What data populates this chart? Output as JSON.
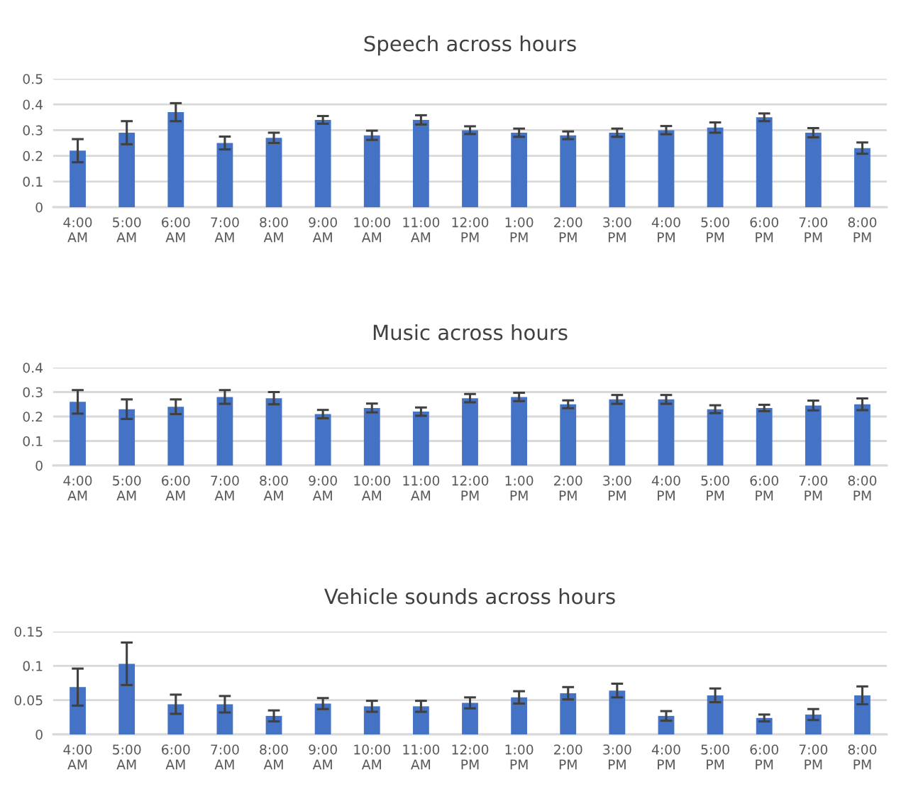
{
  "chart_data": [
    {
      "type": "bar",
      "title": "Speech across hours",
      "categories": [
        "4:00 AM",
        "5:00 AM",
        "6:00 AM",
        "7:00 AM",
        "8:00 AM",
        "9:00 AM",
        "10:00 AM",
        "11:00 AM",
        "12:00 PM",
        "1:00 PM",
        "2:00 PM",
        "3:00 PM",
        "4:00 PM",
        "5:00 PM",
        "6:00 PM",
        "7:00 PM",
        "8:00 PM"
      ],
      "color": "#4472c4",
      "values": [
        0.22,
        0.29,
        0.37,
        0.25,
        0.27,
        0.34,
        0.28,
        0.34,
        0.3,
        0.29,
        0.28,
        0.29,
        0.3,
        0.31,
        0.35,
        0.29,
        0.23
      ],
      "errors": [
        0.045,
        0.045,
        0.035,
        0.025,
        0.02,
        0.015,
        0.018,
        0.018,
        0.015,
        0.016,
        0.015,
        0.016,
        0.016,
        0.02,
        0.015,
        0.018,
        0.022
      ],
      "ylim": [
        0,
        0.5
      ],
      "yticks": [
        0,
        0.1,
        0.2,
        0.3,
        0.4,
        0.5
      ],
      "grid": "y",
      "legend": false
    },
    {
      "type": "bar",
      "title": "Music across hours",
      "categories": [
        "4:00 AM",
        "5:00 AM",
        "6:00 AM",
        "7:00 AM",
        "8:00 AM",
        "9:00 AM",
        "10:00 AM",
        "11:00 AM",
        "12:00 PM",
        "1:00 PM",
        "2:00 PM",
        "3:00 PM",
        "4:00 PM",
        "5:00 PM",
        "6:00 PM",
        "7:00 PM",
        "8:00 PM"
      ],
      "color": "#4472c4",
      "values": [
        0.26,
        0.23,
        0.24,
        0.28,
        0.275,
        0.21,
        0.235,
        0.22,
        0.275,
        0.28,
        0.25,
        0.27,
        0.27,
        0.23,
        0.235,
        0.245,
        0.25
      ],
      "errors": [
        0.048,
        0.04,
        0.03,
        0.028,
        0.025,
        0.017,
        0.018,
        0.017,
        0.017,
        0.017,
        0.016,
        0.018,
        0.018,
        0.016,
        0.013,
        0.02,
        0.024
      ],
      "ylim": [
        0,
        0.4
      ],
      "yticks": [
        0,
        0.1,
        0.2,
        0.3,
        0.4
      ],
      "grid": "y",
      "legend": false
    },
    {
      "type": "bar",
      "title": "Vehicle sounds across hours",
      "categories": [
        "4:00 AM",
        "5:00 AM",
        "6:00 AM",
        "7:00 AM",
        "8:00 AM",
        "9:00 AM",
        "10:00 AM",
        "11:00 AM",
        "12:00 PM",
        "1:00 PM",
        "2:00 PM",
        "3:00 PM",
        "4:00 PM",
        "5:00 PM",
        "6:00 PM",
        "7:00 PM",
        "8:00 PM"
      ],
      "color": "#4472c4",
      "values": [
        0.069,
        0.103,
        0.044,
        0.044,
        0.027,
        0.045,
        0.041,
        0.041,
        0.046,
        0.054,
        0.06,
        0.064,
        0.027,
        0.057,
        0.024,
        0.029,
        0.057
      ],
      "errors": [
        0.027,
        0.031,
        0.014,
        0.012,
        0.008,
        0.008,
        0.008,
        0.008,
        0.008,
        0.009,
        0.009,
        0.01,
        0.007,
        0.01,
        0.005,
        0.008,
        0.013
      ],
      "ylim": [
        0,
        0.15
      ],
      "yticks": [
        0,
        0.05,
        0.1,
        0.15
      ],
      "grid": "y",
      "legend": false
    }
  ]
}
